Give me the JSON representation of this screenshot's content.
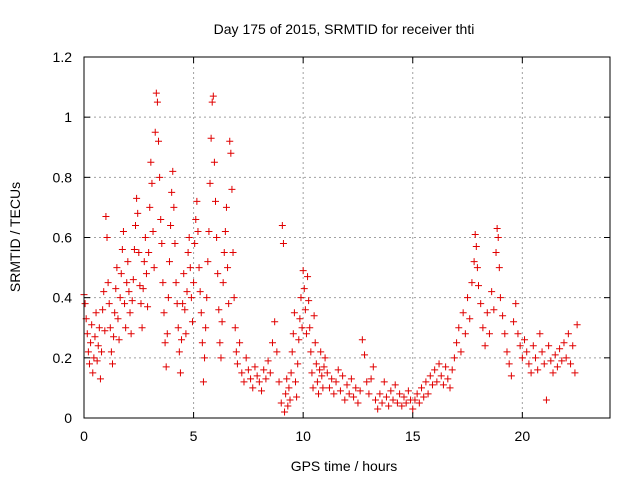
{
  "chart_data": {
    "type": "scatter",
    "title": "Day 175 of 2015, SRMTID for receiver thti",
    "xlabel": "GPS time / hours",
    "ylabel": "SRMTID / TECUs",
    "xlim": [
      0,
      24
    ],
    "ylim": [
      0,
      1.2
    ],
    "xticks": [
      0,
      5,
      10,
      15,
      20
    ],
    "xtick_labels": [
      "0",
      "5",
      "10",
      "15",
      "20"
    ],
    "yticks": [
      0,
      0.2,
      0.4,
      0.6,
      0.8,
      1,
      1.2
    ],
    "ytick_labels": [
      "0",
      "0.2",
      "0.4",
      "0.6",
      "0.8",
      "1",
      "1.2"
    ],
    "grid": true,
    "marker": "plus",
    "color": "#e00000",
    "series": [
      {
        "name": "SRMTID",
        "points": [
          [
            0.0,
            0.41
          ],
          [
            0.05,
            0.38
          ],
          [
            0.1,
            0.33
          ],
          [
            0.15,
            0.28
          ],
          [
            0.2,
            0.22
          ],
          [
            0.25,
            0.18
          ],
          [
            0.3,
            0.25
          ],
          [
            0.35,
            0.31
          ],
          [
            0.4,
            0.15
          ],
          [
            0.45,
            0.2
          ],
          [
            0.5,
            0.27
          ],
          [
            0.55,
            0.35
          ],
          [
            0.6,
            0.19
          ],
          [
            0.65,
            0.24
          ],
          [
            0.7,
            0.3
          ],
          [
            0.75,
            0.13
          ],
          [
            0.8,
            0.22
          ],
          [
            0.85,
            0.36
          ],
          [
            0.9,
            0.42
          ],
          [
            0.95,
            0.29
          ],
          [
            1.0,
            0.67
          ],
          [
            1.05,
            0.6
          ],
          [
            1.1,
            0.45
          ],
          [
            1.15,
            0.38
          ],
          [
            1.2,
            0.3
          ],
          [
            1.25,
            0.22
          ],
          [
            1.3,
            0.18
          ],
          [
            1.35,
            0.27
          ],
          [
            1.4,
            0.35
          ],
          [
            1.45,
            0.43
          ],
          [
            1.5,
            0.5
          ],
          [
            1.55,
            0.33
          ],
          [
            1.6,
            0.26
          ],
          [
            1.65,
            0.4
          ],
          [
            1.7,
            0.48
          ],
          [
            1.75,
            0.56
          ],
          [
            1.8,
            0.62
          ],
          [
            1.85,
            0.38
          ],
          [
            1.9,
            0.3
          ],
          [
            1.95,
            0.45
          ],
          [
            2.0,
            0.52
          ],
          [
            2.05,
            0.42
          ],
          [
            2.1,
            0.35
          ],
          [
            2.15,
            0.28
          ],
          [
            2.2,
            0.39
          ],
          [
            2.25,
            0.46
          ],
          [
            2.3,
            0.56
          ],
          [
            2.35,
            0.64
          ],
          [
            2.4,
            0.73
          ],
          [
            2.45,
            0.68
          ],
          [
            2.5,
            0.55
          ],
          [
            2.55,
            0.44
          ],
          [
            2.6,
            0.38
          ],
          [
            2.65,
            0.3
          ],
          [
            2.7,
            0.43
          ],
          [
            2.75,
            0.52
          ],
          [
            2.8,
            0.6
          ],
          [
            2.85,
            0.48
          ],
          [
            2.9,
            0.37
          ],
          [
            2.95,
            0.55
          ],
          [
            3.0,
            0.7
          ],
          [
            3.05,
            0.85
          ],
          [
            3.1,
            0.78
          ],
          [
            3.15,
            0.62
          ],
          [
            3.2,
            0.5
          ],
          [
            3.25,
            0.95
          ],
          [
            3.3,
            1.08
          ],
          [
            3.35,
            1.05
          ],
          [
            3.4,
            0.92
          ],
          [
            3.45,
            0.8
          ],
          [
            3.5,
            0.66
          ],
          [
            3.55,
            0.58
          ],
          [
            3.6,
            0.45
          ],
          [
            3.65,
            0.35
          ],
          [
            3.7,
            0.25
          ],
          [
            3.75,
            0.17
          ],
          [
            3.8,
            0.28
          ],
          [
            3.85,
            0.4
          ],
          [
            3.9,
            0.52
          ],
          [
            3.95,
            0.64
          ],
          [
            4.0,
            0.75
          ],
          [
            4.05,
            0.82
          ],
          [
            4.1,
            0.7
          ],
          [
            4.15,
            0.58
          ],
          [
            4.2,
            0.45
          ],
          [
            4.25,
            0.38
          ],
          [
            4.3,
            0.3
          ],
          [
            4.35,
            0.22
          ],
          [
            4.4,
            0.15
          ],
          [
            4.45,
            0.26
          ],
          [
            4.5,
            0.38
          ],
          [
            4.55,
            0.48
          ],
          [
            4.6,
            0.36
          ],
          [
            4.65,
            0.28
          ],
          [
            4.7,
            0.42
          ],
          [
            4.75,
            0.55
          ],
          [
            4.8,
            0.6
          ],
          [
            4.85,
            0.5
          ],
          [
            4.9,
            0.4
          ],
          [
            4.95,
            0.32
          ],
          [
            5.0,
            0.45
          ],
          [
            5.05,
            0.58
          ],
          [
            5.1,
            0.66
          ],
          [
            5.15,
            0.72
          ],
          [
            5.2,
            0.62
          ],
          [
            5.25,
            0.5
          ],
          [
            5.3,
            0.42
          ],
          [
            5.35,
            0.35
          ],
          [
            5.4,
            0.25
          ],
          [
            5.45,
            0.12
          ],
          [
            5.5,
            0.2
          ],
          [
            5.55,
            0.3
          ],
          [
            5.6,
            0.4
          ],
          [
            5.65,
            0.52
          ],
          [
            5.7,
            0.62
          ],
          [
            5.75,
            0.78
          ],
          [
            5.8,
            0.93
          ],
          [
            5.85,
            1.05
          ],
          [
            5.9,
            1.07
          ],
          [
            5.95,
            0.85
          ],
          [
            6.0,
            0.72
          ],
          [
            6.05,
            0.6
          ],
          [
            6.1,
            0.48
          ],
          [
            6.15,
            0.36
          ],
          [
            6.2,
            0.25
          ],
          [
            6.25,
            0.2
          ],
          [
            6.3,
            0.32
          ],
          [
            6.35,
            0.45
          ],
          [
            6.4,
            0.55
          ],
          [
            6.45,
            0.62
          ],
          [
            6.5,
            0.7
          ],
          [
            6.55,
            0.5
          ],
          [
            6.6,
            0.38
          ],
          [
            6.65,
            0.92
          ],
          [
            6.7,
            0.88
          ],
          [
            6.75,
            0.76
          ],
          [
            6.8,
            0.55
          ],
          [
            6.85,
            0.4
          ],
          [
            6.9,
            0.3
          ],
          [
            6.95,
            0.22
          ],
          [
            7.0,
            0.18
          ],
          [
            7.1,
            0.25
          ],
          [
            7.2,
            0.15
          ],
          [
            7.3,
            0.12
          ],
          [
            7.4,
            0.2
          ],
          [
            7.5,
            0.16
          ],
          [
            7.6,
            0.13
          ],
          [
            7.7,
            0.1
          ],
          [
            7.8,
            0.17
          ],
          [
            7.9,
            0.14
          ],
          [
            8.0,
            0.12
          ],
          [
            8.1,
            0.09
          ],
          [
            8.2,
            0.16
          ],
          [
            8.3,
            0.13
          ],
          [
            8.4,
            0.19
          ],
          [
            8.5,
            0.15
          ],
          [
            8.6,
            0.25
          ],
          [
            8.7,
            0.32
          ],
          [
            8.8,
            0.22
          ],
          [
            8.9,
            0.12
          ],
          [
            9.0,
            0.05
          ],
          [
            9.05,
            0.64
          ],
          [
            9.1,
            0.58
          ],
          [
            9.15,
            0.02
          ],
          [
            9.2,
            0.08
          ],
          [
            9.25,
            0.13
          ],
          [
            9.3,
            0.04
          ],
          [
            9.35,
            0.1
          ],
          [
            9.4,
            0.06
          ],
          [
            9.45,
            0.15
          ],
          [
            9.5,
            0.22
          ],
          [
            9.55,
            0.28
          ],
          [
            9.6,
            0.35
          ],
          [
            9.65,
            0.12
          ],
          [
            9.7,
            0.07
          ],
          [
            9.75,
            0.18
          ],
          [
            9.8,
            0.26
          ],
          [
            9.85,
            0.33
          ],
          [
            9.9,
            0.4
          ],
          [
            9.95,
            0.3
          ],
          [
            10.0,
            0.49
          ],
          [
            10.05,
            0.43
          ],
          [
            10.1,
            0.36
          ],
          [
            10.15,
            0.28
          ],
          [
            10.2,
            0.47
          ],
          [
            10.25,
            0.39
          ],
          [
            10.3,
            0.3
          ],
          [
            10.35,
            0.22
          ],
          [
            10.4,
            0.15
          ],
          [
            10.45,
            0.1
          ],
          [
            10.5,
            0.34
          ],
          [
            10.55,
            0.25
          ],
          [
            10.6,
            0.18
          ],
          [
            10.65,
            0.12
          ],
          [
            10.7,
            0.08
          ],
          [
            10.75,
            0.16
          ],
          [
            10.8,
            0.22
          ],
          [
            10.85,
            0.14
          ],
          [
            10.9,
            0.1
          ],
          [
            10.95,
            0.17
          ],
          [
            11.0,
            0.2
          ],
          [
            11.1,
            0.15
          ],
          [
            11.2,
            0.1
          ],
          [
            11.3,
            0.13
          ],
          [
            11.4,
            0.08
          ],
          [
            11.5,
            0.12
          ],
          [
            11.6,
            0.16
          ],
          [
            11.7,
            0.09
          ],
          [
            11.8,
            0.14
          ],
          [
            11.9,
            0.06
          ],
          [
            12.0,
            0.11
          ],
          [
            12.1,
            0.08
          ],
          [
            12.2,
            0.13
          ],
          [
            12.3,
            0.07
          ],
          [
            12.4,
            0.1
          ],
          [
            12.5,
            0.05
          ],
          [
            12.6,
            0.09
          ],
          [
            12.7,
            0.26
          ],
          [
            12.8,
            0.21
          ],
          [
            12.9,
            0.12
          ],
          [
            13.0,
            0.08
          ],
          [
            13.1,
            0.13
          ],
          [
            13.2,
            0.17
          ],
          [
            13.3,
            0.06
          ],
          [
            13.4,
            0.03
          ],
          [
            13.5,
            0.08
          ],
          [
            13.6,
            0.05
          ],
          [
            13.7,
            0.12
          ],
          [
            13.8,
            0.07
          ],
          [
            13.9,
            0.04
          ],
          [
            14.0,
            0.09
          ],
          [
            14.1,
            0.06
          ],
          [
            14.2,
            0.11
          ],
          [
            14.3,
            0.05
          ],
          [
            14.4,
            0.08
          ],
          [
            14.5,
            0.04
          ],
          [
            14.6,
            0.07
          ],
          [
            14.7,
            0.05
          ],
          [
            14.8,
            0.09
          ],
          [
            14.9,
            0.06
          ],
          [
            15.0,
            0.03
          ],
          [
            15.1,
            0.06
          ],
          [
            15.2,
            0.08
          ],
          [
            15.3,
            0.05
          ],
          [
            15.4,
            0.1
          ],
          [
            15.5,
            0.07
          ],
          [
            15.6,
            0.12
          ],
          [
            15.7,
            0.08
          ],
          [
            15.8,
            0.14
          ],
          [
            15.9,
            0.11
          ],
          [
            16.0,
            0.16
          ],
          [
            16.1,
            0.12
          ],
          [
            16.2,
            0.18
          ],
          [
            16.3,
            0.14
          ],
          [
            16.4,
            0.11
          ],
          [
            16.5,
            0.17
          ],
          [
            16.6,
            0.13
          ],
          [
            16.7,
            0.1
          ],
          [
            16.8,
            0.16
          ],
          [
            16.9,
            0.2
          ],
          [
            17.0,
            0.25
          ],
          [
            17.1,
            0.3
          ],
          [
            17.2,
            0.22
          ],
          [
            17.3,
            0.35
          ],
          [
            17.4,
            0.28
          ],
          [
            17.5,
            0.4
          ],
          [
            17.6,
            0.33
          ],
          [
            17.7,
            0.45
          ],
          [
            17.8,
            0.52
          ],
          [
            17.85,
            0.61
          ],
          [
            17.9,
            0.57
          ],
          [
            17.95,
            0.5
          ],
          [
            18.0,
            0.44
          ],
          [
            18.1,
            0.38
          ],
          [
            18.2,
            0.3
          ],
          [
            18.3,
            0.24
          ],
          [
            18.4,
            0.35
          ],
          [
            18.5,
            0.28
          ],
          [
            18.6,
            0.42
          ],
          [
            18.7,
            0.36
          ],
          [
            18.8,
            0.55
          ],
          [
            18.85,
            0.63
          ],
          [
            18.9,
            0.6
          ],
          [
            18.95,
            0.5
          ],
          [
            19.0,
            0.4
          ],
          [
            19.1,
            0.34
          ],
          [
            19.2,
            0.28
          ],
          [
            19.3,
            0.22
          ],
          [
            19.4,
            0.18
          ],
          [
            19.5,
            0.14
          ],
          [
            19.6,
            0.32
          ],
          [
            19.7,
            0.38
          ],
          [
            19.8,
            0.28
          ],
          [
            19.9,
            0.24
          ],
          [
            20.0,
            0.2
          ],
          [
            20.1,
            0.26
          ],
          [
            20.2,
            0.22
          ],
          [
            20.3,
            0.18
          ],
          [
            20.4,
            0.15
          ],
          [
            20.5,
            0.24
          ],
          [
            20.6,
            0.2
          ],
          [
            20.7,
            0.16
          ],
          [
            20.8,
            0.28
          ],
          [
            20.9,
            0.22
          ],
          [
            21.0,
            0.18
          ],
          [
            21.1,
            0.06
          ],
          [
            21.2,
            0.24
          ],
          [
            21.3,
            0.19
          ],
          [
            21.4,
            0.15
          ],
          [
            21.5,
            0.21
          ],
          [
            21.6,
            0.17
          ],
          [
            21.7,
            0.23
          ],
          [
            21.8,
            0.19
          ],
          [
            21.9,
            0.25
          ],
          [
            22.0,
            0.2
          ],
          [
            22.1,
            0.28
          ],
          [
            22.2,
            0.18
          ],
          [
            22.3,
            0.24
          ],
          [
            22.4,
            0.15
          ],
          [
            22.5,
            0.31
          ]
        ]
      }
    ]
  }
}
